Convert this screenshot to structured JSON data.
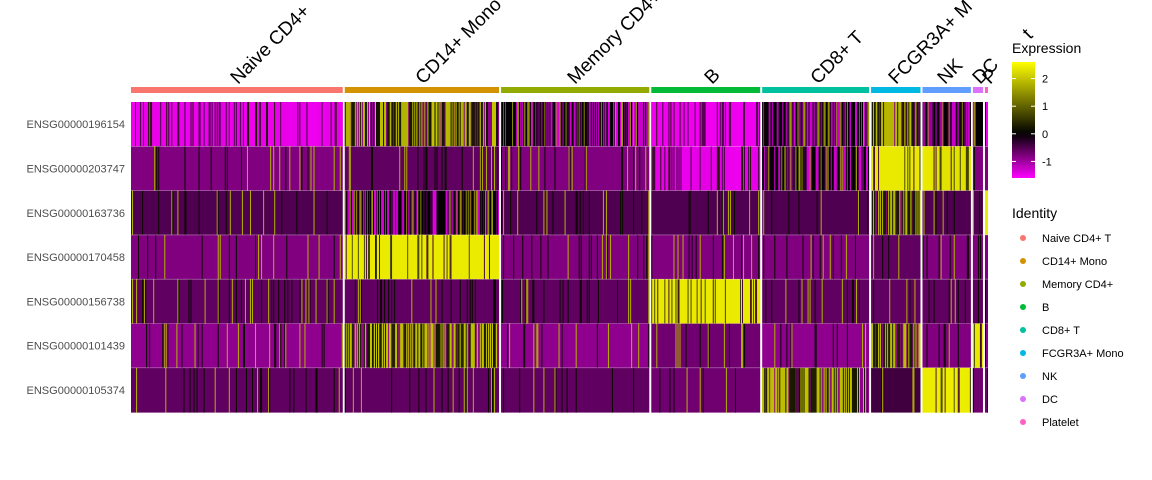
{
  "chart_data": {
    "type": "heatmap",
    "title": "",
    "rows": [
      "ENSG00000196154",
      "ENSG00000203747",
      "ENSG00000163736",
      "ENSG00000170458",
      "ENSG00000156738",
      "ENSG00000101439",
      "ENSG00000105374"
    ],
    "groups": [
      {
        "name": "Naive CD4+ T",
        "color": "#F8766D",
        "cells": 210
      },
      {
        "name": "CD14+ Mono",
        "color": "#D39200",
        "cells": 153
      },
      {
        "name": "Memory CD4+",
        "color": "#93AA00",
        "cells": 147
      },
      {
        "name": "B",
        "color": "#00BA38",
        "cells": 108
      },
      {
        "name": "CD8+ T",
        "color": "#00C19F",
        "cells": 106
      },
      {
        "name": "FCGR3A+ Mono",
        "color": "#00B9E3",
        "cells": 49
      },
      {
        "name": "NK",
        "color": "#619CFF",
        "cells": 48
      },
      {
        "name": "DC",
        "color": "#DB72FB",
        "cells": 10
      },
      {
        "name": "Platelet",
        "color": "#FF61C3",
        "cells": 3
      }
    ],
    "cluster_labels_shown": [
      "Naive CD4+",
      "CD14+ Mono",
      "Memory CD4+",
      "B",
      "CD8+ T",
      "FCGR3A+ M",
      "NK",
      "DC",
      "P",
      "t"
    ],
    "mean_scaled_expression": [
      [
        -1.2,
        0.6,
        -0.1,
        -1.5,
        -0.1,
        0.9,
        -0.3,
        -0.3,
        -1.5
      ],
      [
        -0.8,
        -0.6,
        -0.8,
        -1.0,
        -0.3,
        2.3,
        1.6,
        -0.8,
        -0.8
      ],
      [
        -0.5,
        -0.3,
        -0.5,
        -0.5,
        -0.5,
        0.8,
        -0.5,
        -0.5,
        2.5
      ],
      [
        -0.8,
        2.4,
        -0.8,
        -0.8,
        -0.8,
        -0.6,
        -0.8,
        -0.8,
        -0.8
      ],
      [
        -0.6,
        -0.6,
        -0.6,
        2.3,
        -0.6,
        -0.6,
        -0.6,
        -0.6,
        -0.6
      ],
      [
        -0.9,
        1.5,
        -0.9,
        -0.7,
        -0.9,
        1.2,
        -0.8,
        2.0,
        -0.9
      ],
      [
        -0.6,
        -0.6,
        -0.6,
        -0.7,
        1.4,
        -0.4,
        2.6,
        -0.7,
        -0.7
      ]
    ],
    "color_scale": {
      "title": "Expression",
      "ticks": [
        2,
        1,
        0,
        -1
      ],
      "range": [
        -1.6,
        2.6
      ],
      "low": "#FF00FF",
      "mid": "#000000",
      "high": "#FFFF00"
    },
    "identity_legend": {
      "title": "Identity",
      "items": [
        "Naive CD4+ T",
        "CD14+ Mono",
        "Memory CD4+",
        "B",
        "CD8+ T",
        "FCGR3A+ Mono",
        "NK",
        "DC",
        "Platelet"
      ]
    }
  }
}
